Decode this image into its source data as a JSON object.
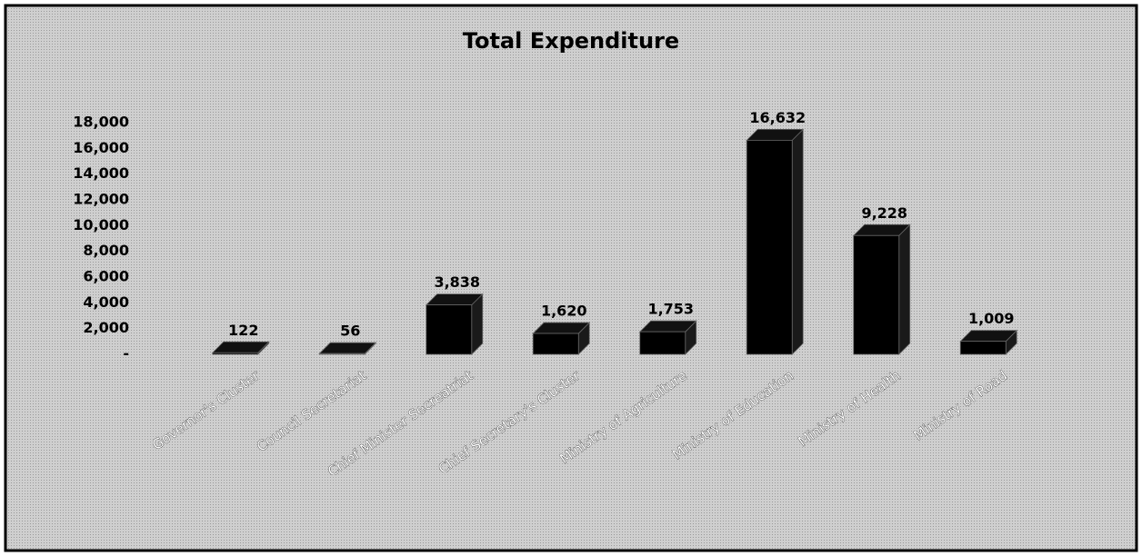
{
  "chart_data": {
    "type": "bar3d",
    "title": "Total Expenditure",
    "categories": [
      "Governor's Cluster",
      "Council Secretariat",
      "Chief Minister Secreatriat",
      "Chief Secretary's Cluster",
      "Ministry of Agriculture",
      "Ministry of Education",
      "Ministry of Health",
      "Ministry of Road"
    ],
    "values": [
      122,
      56,
      3838,
      1620,
      1753,
      16632,
      9228,
      1009
    ],
    "value_labels": [
      "122",
      "56",
      "3,838",
      "1,620",
      "1,753",
      "16,632",
      "9,228",
      "1,009"
    ],
    "color": "#000000",
    "ylim": [
      0,
      18000
    ],
    "yticks": [
      {
        "value": 0,
        "label": "-"
      },
      {
        "value": 2000,
        "label": "2,000"
      },
      {
        "value": 4000,
        "label": "4,000"
      },
      {
        "value": 6000,
        "label": "6,000"
      },
      {
        "value": 8000,
        "label": "8,000"
      },
      {
        "value": 10000,
        "label": "10,000"
      },
      {
        "value": 12000,
        "label": "12,000"
      },
      {
        "value": 14000,
        "label": "14,000"
      },
      {
        "value": 16000,
        "label": "16,000"
      },
      {
        "value": 18000,
        "label": "18,000"
      }
    ],
    "grid": false
  }
}
